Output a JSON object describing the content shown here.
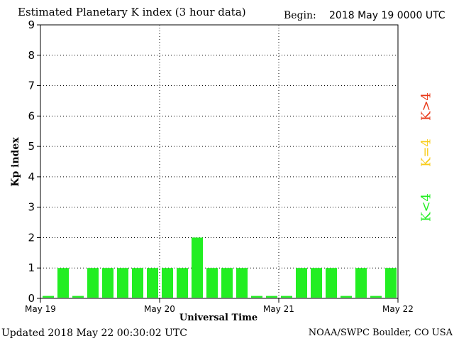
{
  "header": {
    "title": "Estimated Planetary K index (3 hour data)",
    "begin_label": "Begin:",
    "begin_value": "2018 May 19 0000 UTC"
  },
  "footer": {
    "updated": "Updated 2018 May 22 00:30:02 UTC",
    "source": "NOAA/SWPC Boulder, CO USA"
  },
  "legend": {
    "high": "K>4",
    "equal": "K=4",
    "low": "K<4"
  },
  "colors": {
    "low": "#22ee22",
    "equal": "#f8cc1a",
    "high": "#e83a1a"
  },
  "chart_data": {
    "type": "bar",
    "title": "Estimated Planetary K index (3 hour data)",
    "xlabel": "Universal Time",
    "ylabel": "Kp index",
    "ylim": [
      0,
      9
    ],
    "yticks": [
      "0",
      "1",
      "2",
      "3",
      "4",
      "5",
      "6",
      "7",
      "8",
      "9"
    ],
    "xticks": [
      "May 19",
      "May 20",
      "May 21",
      "May 22"
    ],
    "grid": true,
    "values": [
      0,
      1,
      0,
      1,
      1,
      1,
      1,
      1,
      1,
      1,
      2,
      1,
      1,
      1,
      0,
      0,
      0,
      1,
      1,
      1,
      0,
      1,
      0,
      1
    ]
  }
}
